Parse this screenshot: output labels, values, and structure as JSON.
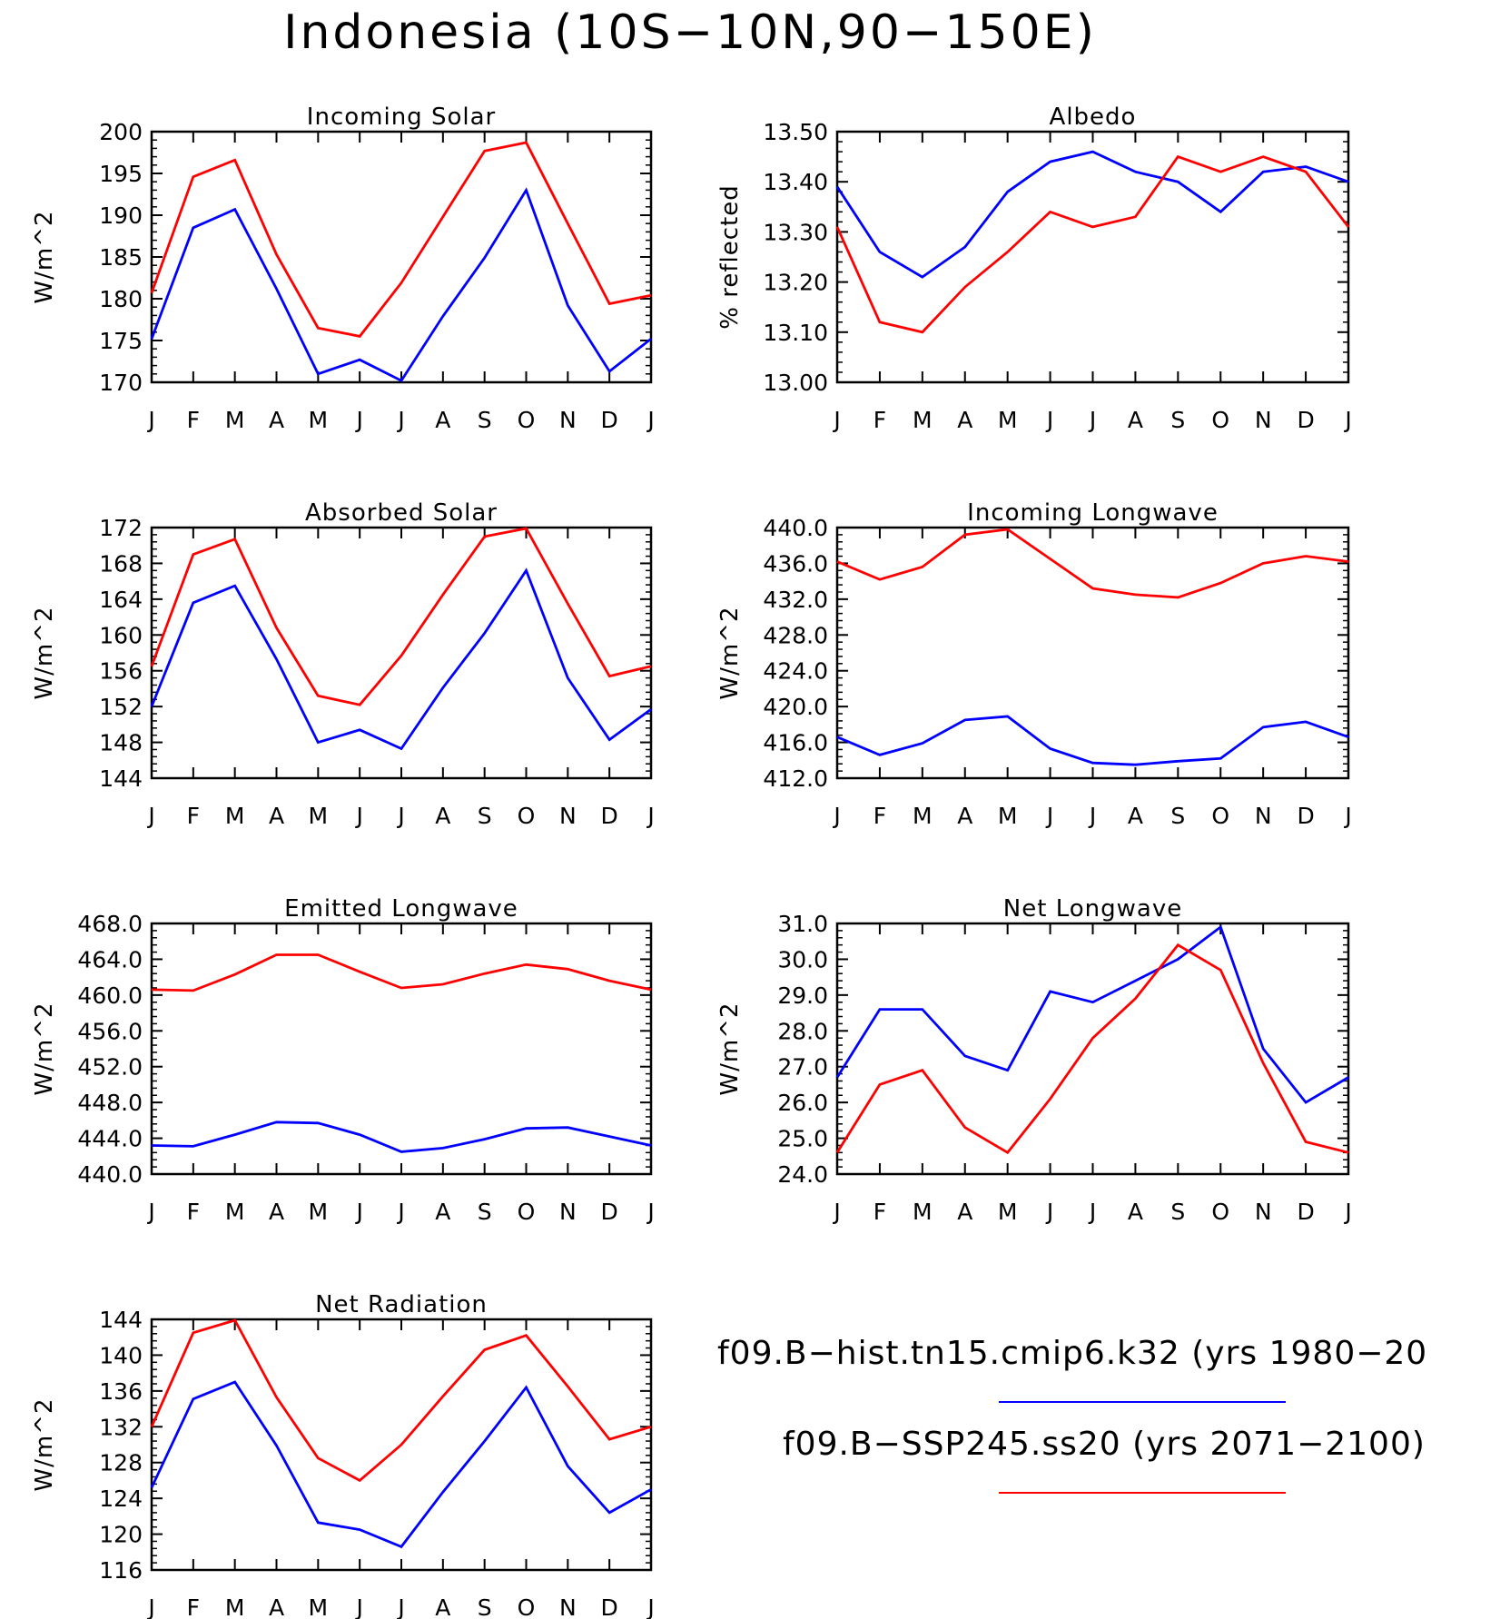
{
  "figure": {
    "title": "Indonesia (10S−10N,90−150E)"
  },
  "legend": [
    {
      "label": "f09.B−hist.tn15.cmip6.k32 (yrs 1980−20",
      "color": "#0000ff"
    },
    {
      "label": "f09.B−SSP245.ss20 (yrs 2071−2100)",
      "color": "#ff0000"
    }
  ],
  "chart_data": [
    {
      "type": "line",
      "title": "Incoming Solar",
      "ylabel": "W/m^2",
      "categories": [
        "J",
        "F",
        "M",
        "A",
        "M",
        "J",
        "J",
        "A",
        "S",
        "O",
        "N",
        "D",
        "J"
      ],
      "ylim": [
        170,
        200
      ],
      "yticks": [
        "170",
        "175",
        "180",
        "185",
        "190",
        "195",
        "200"
      ],
      "series": [
        {
          "color": "#0000ff",
          "values": [
            175.2,
            188.5,
            190.7,
            181.2,
            171.0,
            172.7,
            170.2,
            177.9,
            184.9,
            193.0,
            179.2,
            171.3,
            175.2
          ]
        },
        {
          "color": "#ff0000",
          "values": [
            180.7,
            194.6,
            196.6,
            185.3,
            176.5,
            175.5,
            181.9,
            189.8,
            197.7,
            198.7,
            189.0,
            179.4,
            180.4
          ]
        }
      ]
    },
    {
      "type": "line",
      "title": "Albedo",
      "ylabel": "% reflected",
      "categories": [
        "J",
        "F",
        "M",
        "A",
        "M",
        "J",
        "J",
        "A",
        "S",
        "O",
        "N",
        "D",
        "J"
      ],
      "ylim": [
        13.0,
        13.5
      ],
      "yticks": [
        "13.00",
        "13.10",
        "13.20",
        "13.30",
        "13.40",
        "13.50"
      ],
      "series": [
        {
          "color": "#0000ff",
          "values": [
            13.39,
            13.26,
            13.21,
            13.27,
            13.38,
            13.44,
            13.46,
            13.42,
            13.4,
            13.34,
            13.42,
            13.43,
            13.4
          ]
        },
        {
          "color": "#ff0000",
          "values": [
            13.31,
            13.12,
            13.1,
            13.19,
            13.26,
            13.34,
            13.31,
            13.33,
            13.45,
            13.42,
            13.45,
            13.42,
            13.31
          ]
        }
      ]
    },
    {
      "type": "line",
      "title": "Absorbed Solar",
      "ylabel": "W/m^2",
      "categories": [
        "J",
        "F",
        "M",
        "A",
        "M",
        "J",
        "J",
        "A",
        "S",
        "O",
        "N",
        "D",
        "J"
      ],
      "ylim": [
        144,
        172
      ],
      "yticks": [
        "144",
        "148",
        "152",
        "156",
        "160",
        "164",
        "168",
        "172"
      ],
      "series": [
        {
          "color": "#0000ff",
          "values": [
            152.0,
            163.6,
            165.5,
            157.3,
            148.0,
            149.4,
            147.3,
            154.1,
            160.2,
            167.2,
            155.2,
            148.3,
            151.7
          ]
        },
        {
          "color": "#ff0000",
          "values": [
            156.5,
            169.0,
            170.7,
            160.8,
            153.2,
            152.2,
            157.7,
            164.5,
            171.0,
            171.9,
            163.5,
            155.4,
            156.5
          ]
        }
      ]
    },
    {
      "type": "line",
      "title": "Incoming Longwave",
      "ylabel": "W/m^2",
      "categories": [
        "J",
        "F",
        "M",
        "A",
        "M",
        "J",
        "J",
        "A",
        "S",
        "O",
        "N",
        "D",
        "J"
      ],
      "ylim": [
        412,
        440
      ],
      "yticks": [
        "412.0",
        "416.0",
        "420.0",
        "424.0",
        "428.0",
        "432.0",
        "436.0",
        "440.0"
      ],
      "series": [
        {
          "color": "#0000ff",
          "values": [
            416.6,
            414.6,
            415.9,
            418.5,
            418.9,
            415.3,
            413.7,
            413.5,
            413.9,
            414.2,
            417.7,
            418.3,
            416.6
          ]
        },
        {
          "color": "#ff0000",
          "values": [
            436.2,
            434.2,
            435.6,
            439.2,
            439.8,
            436.5,
            433.2,
            432.5,
            432.2,
            433.8,
            436.0,
            436.8,
            436.2
          ]
        }
      ]
    },
    {
      "type": "line",
      "title": "Emitted Longwave",
      "ylabel": "W/m^2",
      "categories": [
        "J",
        "F",
        "M",
        "A",
        "M",
        "J",
        "J",
        "A",
        "S",
        "O",
        "N",
        "D",
        "J"
      ],
      "ylim": [
        440,
        468
      ],
      "yticks": [
        "440.0",
        "444.0",
        "448.0",
        "452.0",
        "456.0",
        "460.0",
        "464.0",
        "468.0"
      ],
      "series": [
        {
          "color": "#0000ff",
          "values": [
            443.2,
            443.1,
            444.4,
            445.8,
            445.7,
            444.4,
            442.5,
            442.9,
            443.9,
            445.1,
            445.2,
            444.2,
            443.2
          ]
        },
        {
          "color": "#ff0000",
          "values": [
            460.6,
            460.5,
            462.3,
            464.5,
            464.5,
            462.6,
            460.8,
            461.2,
            462.4,
            463.4,
            462.9,
            461.6,
            460.6
          ]
        }
      ]
    },
    {
      "type": "line",
      "title": "Net Longwave",
      "ylabel": "W/m^2",
      "categories": [
        "J",
        "F",
        "M",
        "A",
        "M",
        "J",
        "J",
        "A",
        "S",
        "O",
        "N",
        "D",
        "J"
      ],
      "ylim": [
        24,
        31
      ],
      "yticks": [
        "24.0",
        "25.0",
        "26.0",
        "27.0",
        "28.0",
        "29.0",
        "30.0",
        "31.0"
      ],
      "series": [
        {
          "color": "#0000ff",
          "values": [
            26.7,
            28.6,
            28.6,
            27.3,
            26.9,
            29.1,
            28.8,
            29.4,
            30.0,
            30.9,
            27.5,
            26.0,
            26.7
          ]
        },
        {
          "color": "#ff0000",
          "values": [
            24.6,
            26.5,
            26.9,
            25.3,
            24.6,
            26.1,
            27.8,
            28.9,
            30.4,
            29.7,
            27.1,
            24.9,
            24.6
          ]
        }
      ]
    },
    {
      "type": "line",
      "title": "Net Radiation",
      "ylabel": "W/m^2",
      "categories": [
        "J",
        "F",
        "M",
        "A",
        "M",
        "J",
        "J",
        "A",
        "S",
        "O",
        "N",
        "D",
        "J"
      ],
      "ylim": [
        116,
        144
      ],
      "yticks": [
        "116",
        "120",
        "124",
        "128",
        "132",
        "136",
        "140",
        "144"
      ],
      "series": [
        {
          "color": "#0000ff",
          "values": [
            125.2,
            135.1,
            137.0,
            129.9,
            121.3,
            120.5,
            118.6,
            124.7,
            130.4,
            136.4,
            127.6,
            122.4,
            125.0
          ]
        },
        {
          "color": "#ff0000",
          "values": [
            132.0,
            142.5,
            143.9,
            135.3,
            128.5,
            126.0,
            130.0,
            135.4,
            140.6,
            142.2,
            136.5,
            130.6,
            132.0
          ]
        }
      ]
    }
  ]
}
